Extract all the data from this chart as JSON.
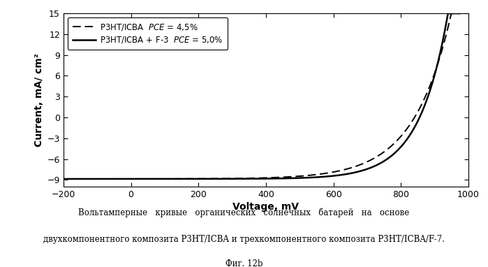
{
  "xlabel": "Voltage, mV",
  "ylabel": "Current, mA/ cm²",
  "xlim": [
    -200,
    1000
  ],
  "ylim": [
    -10,
    15
  ],
  "xticks": [
    -200,
    0,
    200,
    400,
    600,
    800,
    1000
  ],
  "yticks": [
    -9,
    -6,
    -3,
    0,
    3,
    6,
    9,
    12,
    15
  ],
  "caption_line1": "Вольтамперные   кривые   органических   солнечных   батарей   на   основе",
  "caption_line2": "двухкомпонентного композита P3HT/ICBA и трехкомпонентного композита P3HT/ICBA/F-7.",
  "caption_line3": "Фиг. 12b",
  "background_color": "#ffffff",
  "line_color": "#000000",
  "Iph": 8.85,
  "Vt_solid": 85.0,
  "Vt_dashed": 110.0,
  "Voc_solid": 855.0,
  "Voc_dashed": 840.0
}
